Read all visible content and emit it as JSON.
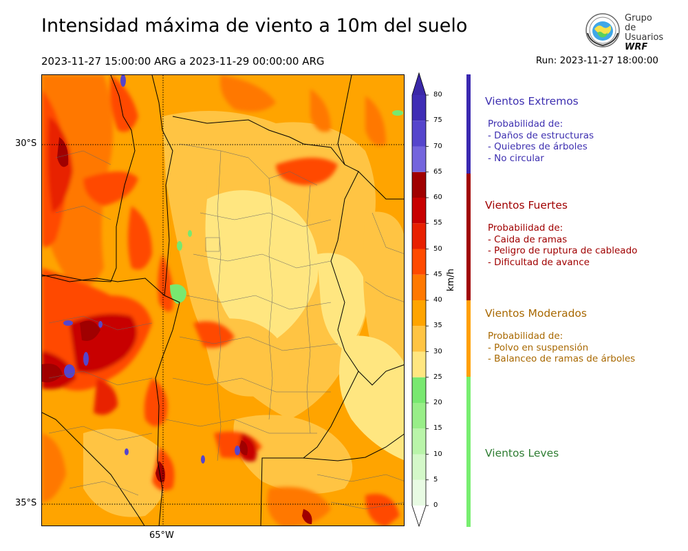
{
  "title": "Intensidad máxima de viento a 10m del suelo",
  "period": "2023-11-27 15:00:00 ARG  a  2023-11-29 00:00:00 ARG",
  "run": "Run: 2023-11-27 18:00:00",
  "logo": {
    "line1": "Grupo de",
    "line2": "Usuarios",
    "line3": "WRF",
    "icon": "globe-seal-icon"
  },
  "map": {
    "lat_labels": [
      "30°S",
      "35°S"
    ],
    "lon_labels": [
      "65°W"
    ]
  },
  "colorbar": {
    "unit": "km/h",
    "ticks": [
      "80",
      "75",
      "70",
      "65",
      "60",
      "55",
      "50",
      "45",
      "40",
      "35",
      "30",
      "25",
      "20",
      "15",
      "10",
      "5",
      "0"
    ],
    "levels": [
      {
        "from": 0,
        "to": 5,
        "color": "#e8fbe3"
      },
      {
        "from": 5,
        "to": 10,
        "color": "#d4f8c9"
      },
      {
        "from": 10,
        "to": 15,
        "color": "#b9f4a9"
      },
      {
        "from": 15,
        "to": 20,
        "color": "#98ee88"
      },
      {
        "from": 20,
        "to": 25,
        "color": "#78e870"
      },
      {
        "from": 25,
        "to": 30,
        "color": "#ffe680"
      },
      {
        "from": 30,
        "to": 35,
        "color": "#ffc443"
      },
      {
        "from": 35,
        "to": 40,
        "color": "#ffa400"
      },
      {
        "from": 40,
        "to": 45,
        "color": "#ff7800"
      },
      {
        "from": 45,
        "to": 50,
        "color": "#ff4a00"
      },
      {
        "from": 50,
        "to": 55,
        "color": "#e82000"
      },
      {
        "from": 55,
        "to": 60,
        "color": "#c80000"
      },
      {
        "from": 60,
        "to": 65,
        "color": "#a00000"
      },
      {
        "from": 65,
        "to": 70,
        "color": "#7465dd"
      },
      {
        "from": 70,
        "to": 75,
        "color": "#5545cc"
      },
      {
        "from": 75,
        "to": 80,
        "color": "#3f2db5"
      }
    ],
    "over_color": "#3a28a8",
    "under_color": "#ffffff"
  },
  "categories": [
    {
      "title": "Vientos Extremos",
      "color": "#3d2fb0",
      "bar_color": "#3a28b0",
      "lines": [
        "Probabilidad de:",
        "- Daños de estructuras",
        "- Quiebres de árboles",
        "- No circular"
      ]
    },
    {
      "title": "Vientos Fuertes",
      "color": "#a00000",
      "bar_color": "#a00000",
      "lines": [
        "Probabilidad de:",
        "- Caida de ramas",
        "- Peligro de ruptura de cableado",
        "- Dificultad de avance"
      ]
    },
    {
      "title": "Vientos Moderados",
      "color": "#a86800",
      "bar_color": "#ff9f00",
      "lines": [
        "Probabilidad de:",
        "- Polvo en suspensión",
        "- Balanceo de ramas de árboles"
      ]
    },
    {
      "title": "Vientos Leves",
      "color": "#2e7d32",
      "bar_color": "#78ee70",
      "lines": []
    }
  ]
}
